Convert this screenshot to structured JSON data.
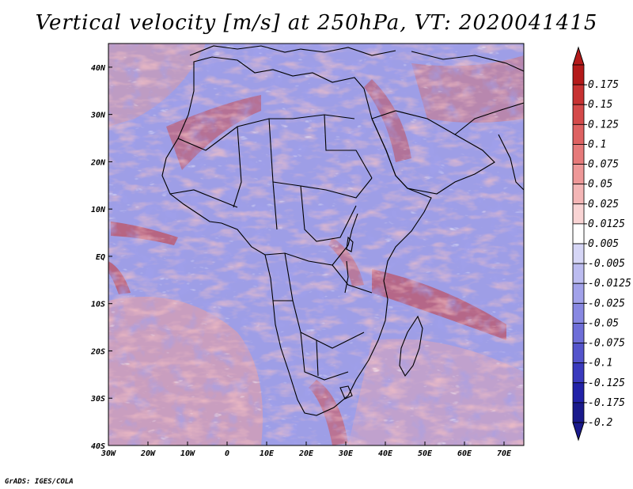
{
  "title": "Vertical velocity [m/s] at 250hPa, VT: 2020041415",
  "footer": "GrADS: IGES/COLA",
  "map": {
    "lon_range": [
      -30,
      75
    ],
    "lat_range": [
      -40,
      45
    ],
    "lon_ticks": [
      "30W",
      "20W",
      "10W",
      "0",
      "10E",
      "20E",
      "30E",
      "40E",
      "50E",
      "60E",
      "70E"
    ],
    "lat_ticks": [
      "40N",
      "30N",
      "20N",
      "10N",
      "EQ",
      "10S",
      "20S",
      "30S",
      "40S"
    ]
  },
  "colorbar": {
    "labels": [
      "0.175",
      "0.15",
      "0.125",
      "0.1",
      "0.075",
      "0.05",
      "0.025",
      "0.0125",
      "0.005",
      "-0.005",
      "-0.0125",
      "-0.025",
      "-0.05",
      "-0.075",
      "-0.1",
      "-0.125",
      "-0.175",
      "-0.2"
    ],
    "colors": [
      "#b41a1a",
      "#c73232",
      "#d44a4a",
      "#de6262",
      "#e67a7a",
      "#ee9898",
      "#f4b6b6",
      "#f9d4d4",
      "#ffffff",
      "#d6d6f6",
      "#bcbcf0",
      "#a2a2ea",
      "#8888e2",
      "#6e6ed8",
      "#5454cc",
      "#3a3abe",
      "#2222a8",
      "#1a1a8c"
    ]
  },
  "colors": {
    "base_field": "#9e9ee6",
    "ocean_pink": "#f0b2b2",
    "coast": "#000000"
  }
}
